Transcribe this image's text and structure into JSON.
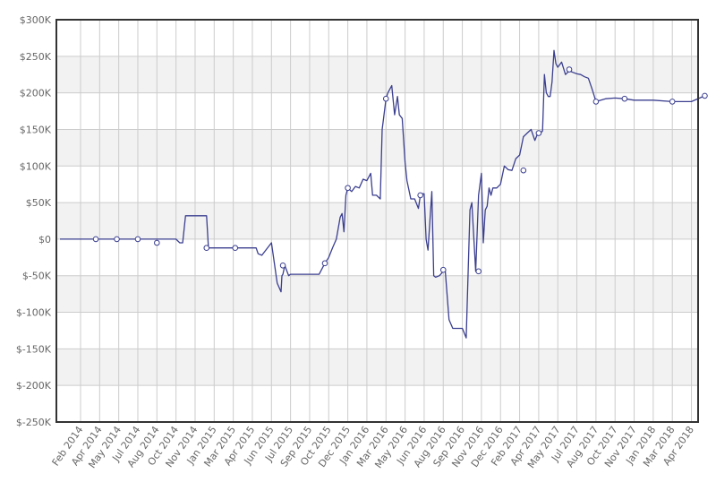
{
  "chart_data": {
    "type": "line",
    "title": "",
    "xlabel": "",
    "ylabel": "",
    "ylim": [
      -250000,
      300000
    ],
    "y_ticks": [
      {
        "value": 300000,
        "label": "$300K"
      },
      {
        "value": 250000,
        "label": "$250K"
      },
      {
        "value": 200000,
        "label": "$200K"
      },
      {
        "value": 150000,
        "label": "$150K"
      },
      {
        "value": 100000,
        "label": "$100K"
      },
      {
        "value": 50000,
        "label": "$50K"
      },
      {
        "value": 0,
        "label": "$0"
      },
      {
        "value": -50000,
        "label": "$-50K"
      },
      {
        "value": -100000,
        "label": "$-100K"
      },
      {
        "value": -150000,
        "label": "$-150K"
      },
      {
        "value": -200000,
        "label": "$-200K"
      },
      {
        "value": -250000,
        "label": "$-250K"
      }
    ],
    "x_ticks": [
      "Feb 2014",
      "Apr 2014",
      "May 2014",
      "Jul 2014",
      "Aug 2014",
      "Oct 2014",
      "Nov 2014",
      "Jan 2015",
      "Mar 2015",
      "Apr 2015",
      "Jun 2015",
      "Jul 2015",
      "Sep 2015",
      "Oct 2015",
      "Dec 2015",
      "Jan 2016",
      "Mar 2016",
      "May 2016",
      "Jun 2016",
      "Aug 2016",
      "Sep 2016",
      "Nov 2016",
      "Dec 2016",
      "Feb 2017",
      "Apr 2017",
      "May 2017",
      "Jul 2017",
      "Aug 2017",
      "Oct 2017",
      "Nov 2017",
      "Jan 2018",
      "Mar 2018",
      "Apr 2018"
    ],
    "grid": true,
    "colors": {
      "line": "#3b3f8f",
      "marker_fill": "#ffffff",
      "band": "#f2f2f2",
      "grid": "#cccccc",
      "frame": "#333333",
      "label": "#666666"
    },
    "series": [
      {
        "x": [
          0,
          0.8,
          1.9,
          3.0,
          4.0,
          5.0,
          5.2,
          5.35,
          5.5,
          5.6,
          6.1,
          6.6,
          6.7,
          7.0,
          7.1,
          8.1,
          8.5,
          9.2,
          9.3,
          9.5,
          10.0,
          10.3,
          10.5,
          10.55,
          10.6,
          10.7,
          10.9,
          11.0,
          11.2,
          11.4,
          11.5,
          12.0,
          12.5,
          12.8,
          13.0,
          13.2,
          13.4,
          13.6,
          13.7,
          13.8,
          13.9,
          14.0,
          14.2,
          14.4,
          14.6,
          14.8,
          15.0,
          15.2,
          15.3,
          15.5,
          15.7,
          15.8,
          16.0,
          16.1,
          16.3,
          16.45,
          16.6,
          16.7,
          16.85,
          17.0,
          17.1,
          17.3,
          17.5,
          17.7,
          17.8,
          17.9,
          18.0,
          18.1,
          18.2,
          18.4,
          18.5,
          18.6,
          18.8,
          19.0,
          19.1,
          19.3,
          19.5,
          19.8,
          20.0,
          20.2,
          20.4,
          20.5,
          20.7,
          20.85,
          21.0,
          21.1,
          21.2,
          21.3,
          21.4,
          21.5,
          21.6,
          21.8,
          22.0,
          22.2,
          22.4,
          22.6,
          22.8,
          23.0,
          23.2,
          23.4,
          23.6,
          23.8,
          24.0,
          24.1,
          24.2,
          24.3,
          24.4,
          24.5,
          24.6,
          24.7,
          24.8,
          24.9,
          25.0,
          25.2,
          25.4,
          25.6,
          25.8,
          26.0,
          26.2,
          26.4,
          26.6,
          26.8,
          27.0,
          27.5,
          28.0,
          28.5,
          29.0,
          30.0,
          31.0,
          32.0,
          32.7
        ],
        "y": [
          0,
          0,
          0,
          0,
          0,
          0,
          -5000,
          -5000,
          32000,
          32000,
          32000,
          32000,
          -12000,
          -12000,
          -12000,
          -12000,
          -12000,
          -12000,
          -20000,
          -22000,
          -5000,
          -60000,
          -72000,
          -50000,
          -48000,
          -36000,
          -50000,
          -48000,
          -48000,
          -48000,
          -48000,
          -48000,
          -48000,
          -33000,
          -25000,
          -12000,
          0,
          30000,
          35000,
          10000,
          60000,
          70000,
          65000,
          72000,
          70000,
          82000,
          80000,
          90000,
          60000,
          60000,
          55000,
          150000,
          192000,
          200000,
          210000,
          170000,
          195000,
          170000,
          165000,
          105000,
          80000,
          55000,
          55000,
          42000,
          60000,
          62000,
          62000,
          0,
          -15000,
          65000,
          -50000,
          -52000,
          -50000,
          -44000,
          -42000,
          -110000,
          -122000,
          -122000,
          -122000,
          -135000,
          40000,
          50000,
          -44000,
          60000,
          90000,
          -5000,
          40000,
          45000,
          70000,
          60000,
          70000,
          70000,
          75000,
          100000,
          95000,
          94000,
          110000,
          115000,
          140000,
          145000,
          150000,
          135000,
          148000,
          145000,
          148000,
          225000,
          200000,
          195000,
          195000,
          215000,
          258000,
          240000,
          235000,
          242000,
          225000,
          230000,
          228000,
          226000,
          225000,
          222000,
          220000,
          205000,
          188000,
          192000,
          193000,
          192000,
          190000,
          190000,
          188000,
          188000,
          196000
        ]
      }
    ],
    "markers": [
      {
        "x": 0.8,
        "y": 0
      },
      {
        "x": 1.9,
        "y": 0
      },
      {
        "x": 3.0,
        "y": 0
      },
      {
        "x": 4.0,
        "y": -5000
      },
      {
        "x": 6.6,
        "y": -12000
      },
      {
        "x": 8.1,
        "y": -12000
      },
      {
        "x": 10.6,
        "y": -36000
      },
      {
        "x": 12.8,
        "y": -33000
      },
      {
        "x": 14.0,
        "y": 70000
      },
      {
        "x": 16.0,
        "y": 192000
      },
      {
        "x": 17.8,
        "y": 60000
      },
      {
        "x": 19.0,
        "y": -42000
      },
      {
        "x": 20.85,
        "y": -44000
      },
      {
        "x": 23.2,
        "y": 94000
      },
      {
        "x": 24.0,
        "y": 145000
      },
      {
        "x": 25.6,
        "y": 232000
      },
      {
        "x": 27.0,
        "y": 188000
      },
      {
        "x": 28.5,
        "y": 192000
      },
      {
        "x": 31.0,
        "y": 188000
      },
      {
        "x": 32.7,
        "y": 196000
      }
    ]
  }
}
